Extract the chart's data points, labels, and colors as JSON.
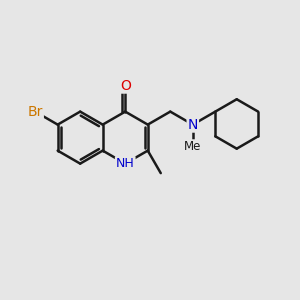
{
  "background_color": "#e6e6e6",
  "bond_color": "#1a1a1a",
  "bond_width": 1.8,
  "atom_colors": {
    "Br": "#cc7700",
    "O": "#dd0000",
    "N": "#0000cc",
    "C": "#1a1a1a"
  },
  "font_size_large": 10,
  "font_size_small": 9,
  "bl": 1.0,
  "rc_x": 5.0,
  "rc_y": 5.3,
  "xlim": [
    0,
    12
  ],
  "ylim": [
    0,
    10
  ]
}
